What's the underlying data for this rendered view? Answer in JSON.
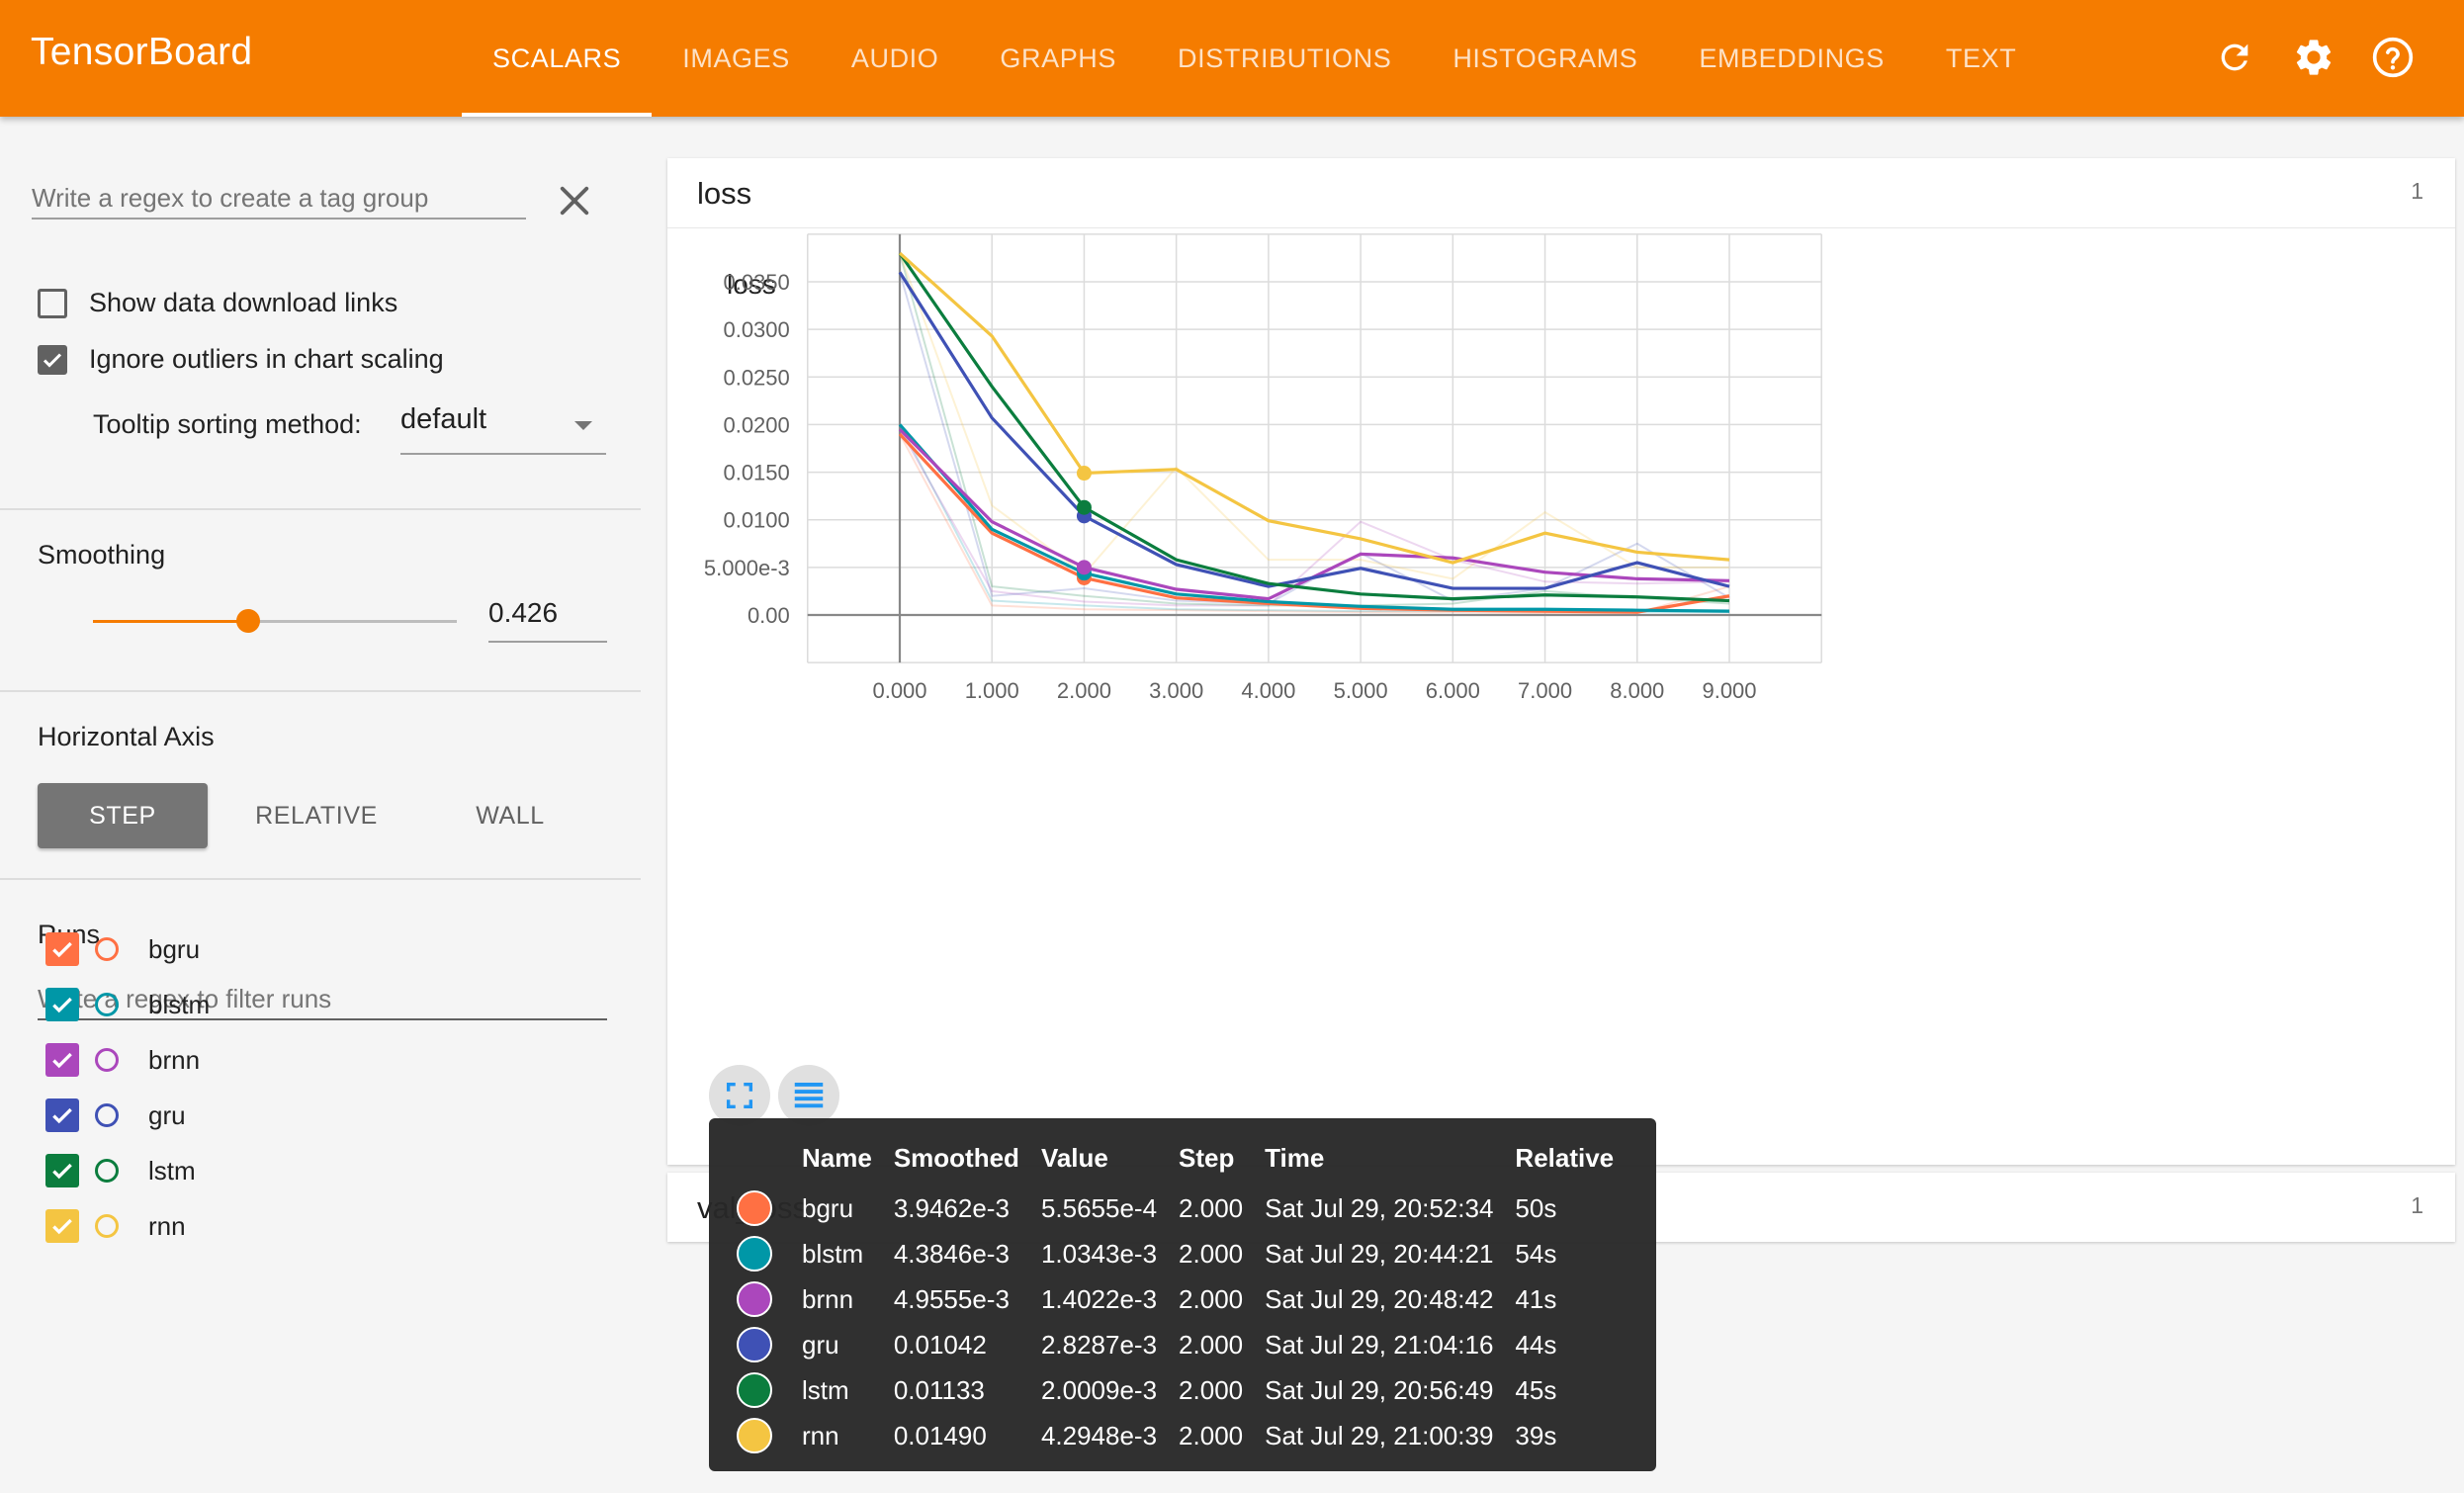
{
  "header": {
    "brand": "TensorBoard",
    "tabs": [
      {
        "label": "SCALARS",
        "active": true
      },
      {
        "label": "IMAGES"
      },
      {
        "label": "AUDIO"
      },
      {
        "label": "GRAPHS"
      },
      {
        "label": "DISTRIBUTIONS"
      },
      {
        "label": "HISTOGRAMS"
      },
      {
        "label": "EMBEDDINGS"
      },
      {
        "label": "TEXT"
      }
    ],
    "icons": [
      "refresh-icon",
      "settings-icon",
      "help-icon"
    ],
    "color": "#f57c00"
  },
  "sidebar": {
    "tag_regex_placeholder": "Write a regex to create a tag group",
    "show_download_label": "Show data download links",
    "show_download_checked": false,
    "ignore_outliers_label": "Ignore outliers in chart scaling",
    "ignore_outliers_checked": true,
    "tooltip_sort_label": "Tooltip sorting method:",
    "tooltip_sort_value": "default",
    "smoothing_title": "Smoothing",
    "smoothing_value": "0.426",
    "smoothing_fraction": 0.426,
    "horizontal_axis_title": "Horizontal Axis",
    "axis_options": [
      "STEP",
      "RELATIVE",
      "WALL"
    ],
    "axis_selected": "STEP",
    "runs_title": "Runs",
    "runs_filter_placeholder": "Write a regex to filter runs",
    "runs": [
      {
        "name": "bgru",
        "color": "#ff7043",
        "checked": true
      },
      {
        "name": "blstm",
        "color": "#0097a7",
        "checked": true
      },
      {
        "name": "brnn",
        "color": "#ab47bc",
        "checked": true
      },
      {
        "name": "gru",
        "color": "#3f51b5",
        "checked": true
      },
      {
        "name": "lstm",
        "color": "#0b7d3e",
        "checked": true
      },
      {
        "name": "rnn",
        "color": "#f4c542",
        "checked": true
      }
    ]
  },
  "main": {
    "card1": {
      "title": "loss",
      "count": "1"
    },
    "card2": {
      "title": "val_loss",
      "count": "1"
    }
  },
  "chart_data": {
    "type": "line",
    "title": "loss",
    "xlabel": "",
    "ylabel": "",
    "xlim": [
      -1,
      10
    ],
    "ylim": [
      -0.005,
      0.04
    ],
    "x_ticks": [
      "0.000",
      "1.000",
      "2.000",
      "3.000",
      "4.000",
      "5.000",
      "6.000",
      "7.000",
      "8.000",
      "9.000"
    ],
    "y_ticks": [
      {
        "v": 0.0,
        "label": "0.00"
      },
      {
        "v": 0.005,
        "label": "5.000e-3"
      },
      {
        "v": 0.01,
        "label": "0.0100"
      },
      {
        "v": 0.015,
        "label": "0.0150"
      },
      {
        "v": 0.02,
        "label": "0.0200"
      },
      {
        "v": 0.025,
        "label": "0.0250"
      },
      {
        "v": 0.03,
        "label": "0.0300"
      },
      {
        "v": 0.035,
        "label": "0.0350"
      }
    ],
    "grid": true,
    "highlight_step": 2,
    "series": [
      {
        "name": "bgru",
        "color": "#ff7043",
        "smoothed": [
          0.019,
          0.0086,
          0.0039,
          0.0018,
          0.0012,
          0.0007,
          0.0005,
          0.0004,
          0.0003,
          0.002
        ],
        "raw": [
          0.019,
          0.001,
          0.0006,
          0.0005,
          0.0004,
          0.0003,
          0.0003,
          0.0002,
          0.0002,
          0.003
        ]
      },
      {
        "name": "blstm",
        "color": "#0097a7",
        "smoothed": [
          0.02,
          0.009,
          0.0044,
          0.0022,
          0.0014,
          0.0009,
          0.0006,
          0.0006,
          0.0005,
          0.0004
        ],
        "raw": [
          0.02,
          0.0015,
          0.001,
          0.0006,
          0.0005,
          0.0004,
          0.0004,
          0.0004,
          0.0003,
          0.0003
        ]
      },
      {
        "name": "brnn",
        "color": "#ab47bc",
        "smoothed": [
          0.0195,
          0.0098,
          0.005,
          0.0027,
          0.0017,
          0.0064,
          0.006,
          0.0045,
          0.0038,
          0.0036
        ],
        "raw": [
          0.0195,
          0.0025,
          0.0014,
          0.001,
          0.001,
          0.0098,
          0.0058,
          0.0035,
          0.0033,
          0.0035
        ]
      },
      {
        "name": "gru",
        "color": "#3f51b5",
        "smoothed": [
          0.036,
          0.0207,
          0.0104,
          0.0053,
          0.003,
          0.0049,
          0.0028,
          0.0028,
          0.0055,
          0.003
        ],
        "raw": [
          0.036,
          0.002,
          0.0028,
          0.0015,
          0.0012,
          0.0065,
          0.0015,
          0.0028,
          0.0075,
          0.0018
        ]
      },
      {
        "name": "lstm",
        "color": "#0b7d3e",
        "smoothed": [
          0.038,
          0.024,
          0.0113,
          0.0058,
          0.0033,
          0.0022,
          0.0017,
          0.0021,
          0.0019,
          0.0015
        ],
        "raw": [
          0.038,
          0.003,
          0.002,
          0.0012,
          0.001,
          0.001,
          0.0012,
          0.0025,
          0.0018,
          0.0012
        ]
      },
      {
        "name": "rnn",
        "color": "#f4c542",
        "smoothed": [
          0.038,
          0.0293,
          0.0149,
          0.0153,
          0.0099,
          0.008,
          0.0055,
          0.0086,
          0.0066,
          0.0058
        ],
        "raw": [
          0.038,
          0.0115,
          0.0043,
          0.0155,
          0.0058,
          0.0058,
          0.0038,
          0.0108,
          0.005,
          0.005
        ]
      }
    ]
  },
  "tooltip": {
    "headers": [
      "Name",
      "Smoothed",
      "Value",
      "Step",
      "Time",
      "Relative"
    ],
    "rows": [
      {
        "name": "bgru",
        "color": "#ff7043",
        "smoothed": "3.9462e-3",
        "value": "5.5655e-4",
        "step": "2.000",
        "time": "Sat Jul 29, 20:52:34",
        "relative": "50s"
      },
      {
        "name": "blstm",
        "color": "#0097a7",
        "smoothed": "4.3846e-3",
        "value": "1.0343e-3",
        "step": "2.000",
        "time": "Sat Jul 29, 20:44:21",
        "relative": "54s"
      },
      {
        "name": "brnn",
        "color": "#ab47bc",
        "smoothed": "4.9555e-3",
        "value": "1.4022e-3",
        "step": "2.000",
        "time": "Sat Jul 29, 20:48:42",
        "relative": "41s"
      },
      {
        "name": "gru",
        "color": "#3f51b5",
        "smoothed": "0.01042",
        "value": "2.8287e-3",
        "step": "2.000",
        "time": "Sat Jul 29, 21:04:16",
        "relative": "44s"
      },
      {
        "name": "lstm",
        "color": "#0b7d3e",
        "smoothed": "0.01133",
        "value": "2.0009e-3",
        "step": "2.000",
        "time": "Sat Jul 29, 20:56:49",
        "relative": "45s"
      },
      {
        "name": "rnn",
        "color": "#f4c542",
        "smoothed": "0.01490",
        "value": "4.2948e-3",
        "step": "2.000",
        "time": "Sat Jul 29, 21:00:39",
        "relative": "39s"
      }
    ]
  }
}
